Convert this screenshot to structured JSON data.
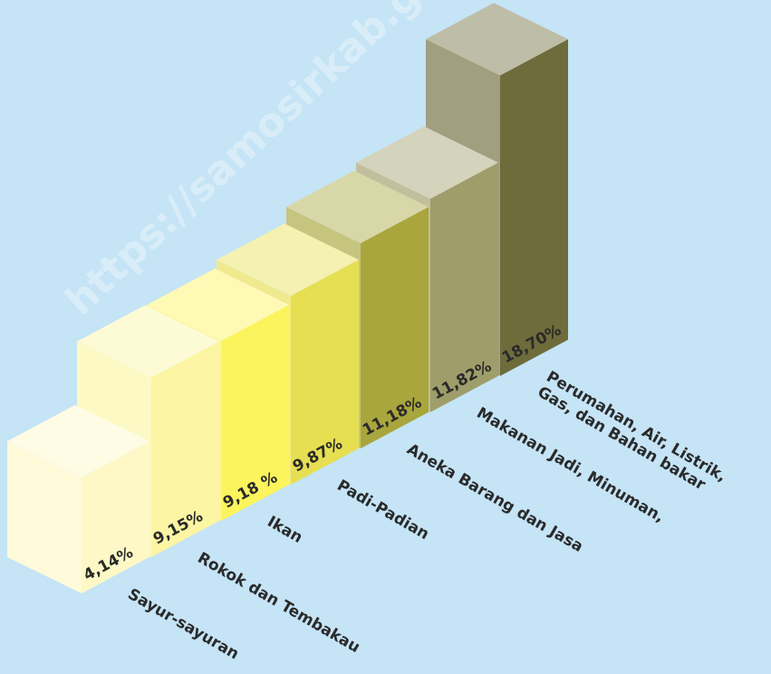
{
  "chart_data": {
    "type": "bar",
    "categories": [
      "Sayur-sayuran",
      "Rokok dan Tembakau",
      "Ikan",
      "Padi-Padian",
      "Aneka Barang dan Jasa",
      "Makanan Jadi, Minuman,",
      "Perumahan, Air, Listrik,\nGas, dan Bahan bakar"
    ],
    "values": [
      4.14,
      9.15,
      9.18,
      9.87,
      11.18,
      11.82,
      18.7
    ],
    "value_labels": [
      "4,14%",
      "9,15%",
      "9,18 %",
      "9,87%",
      "11,18%",
      "11,82%",
      "18,70%"
    ],
    "colors": [
      "#fdf8c6",
      "#fbf5a4",
      "#fcf45c",
      "#e6df52",
      "#a8a63c",
      "#9f9d6a",
      "#6e6c3b"
    ],
    "watermark": "https://samosirkab.go.id"
  }
}
